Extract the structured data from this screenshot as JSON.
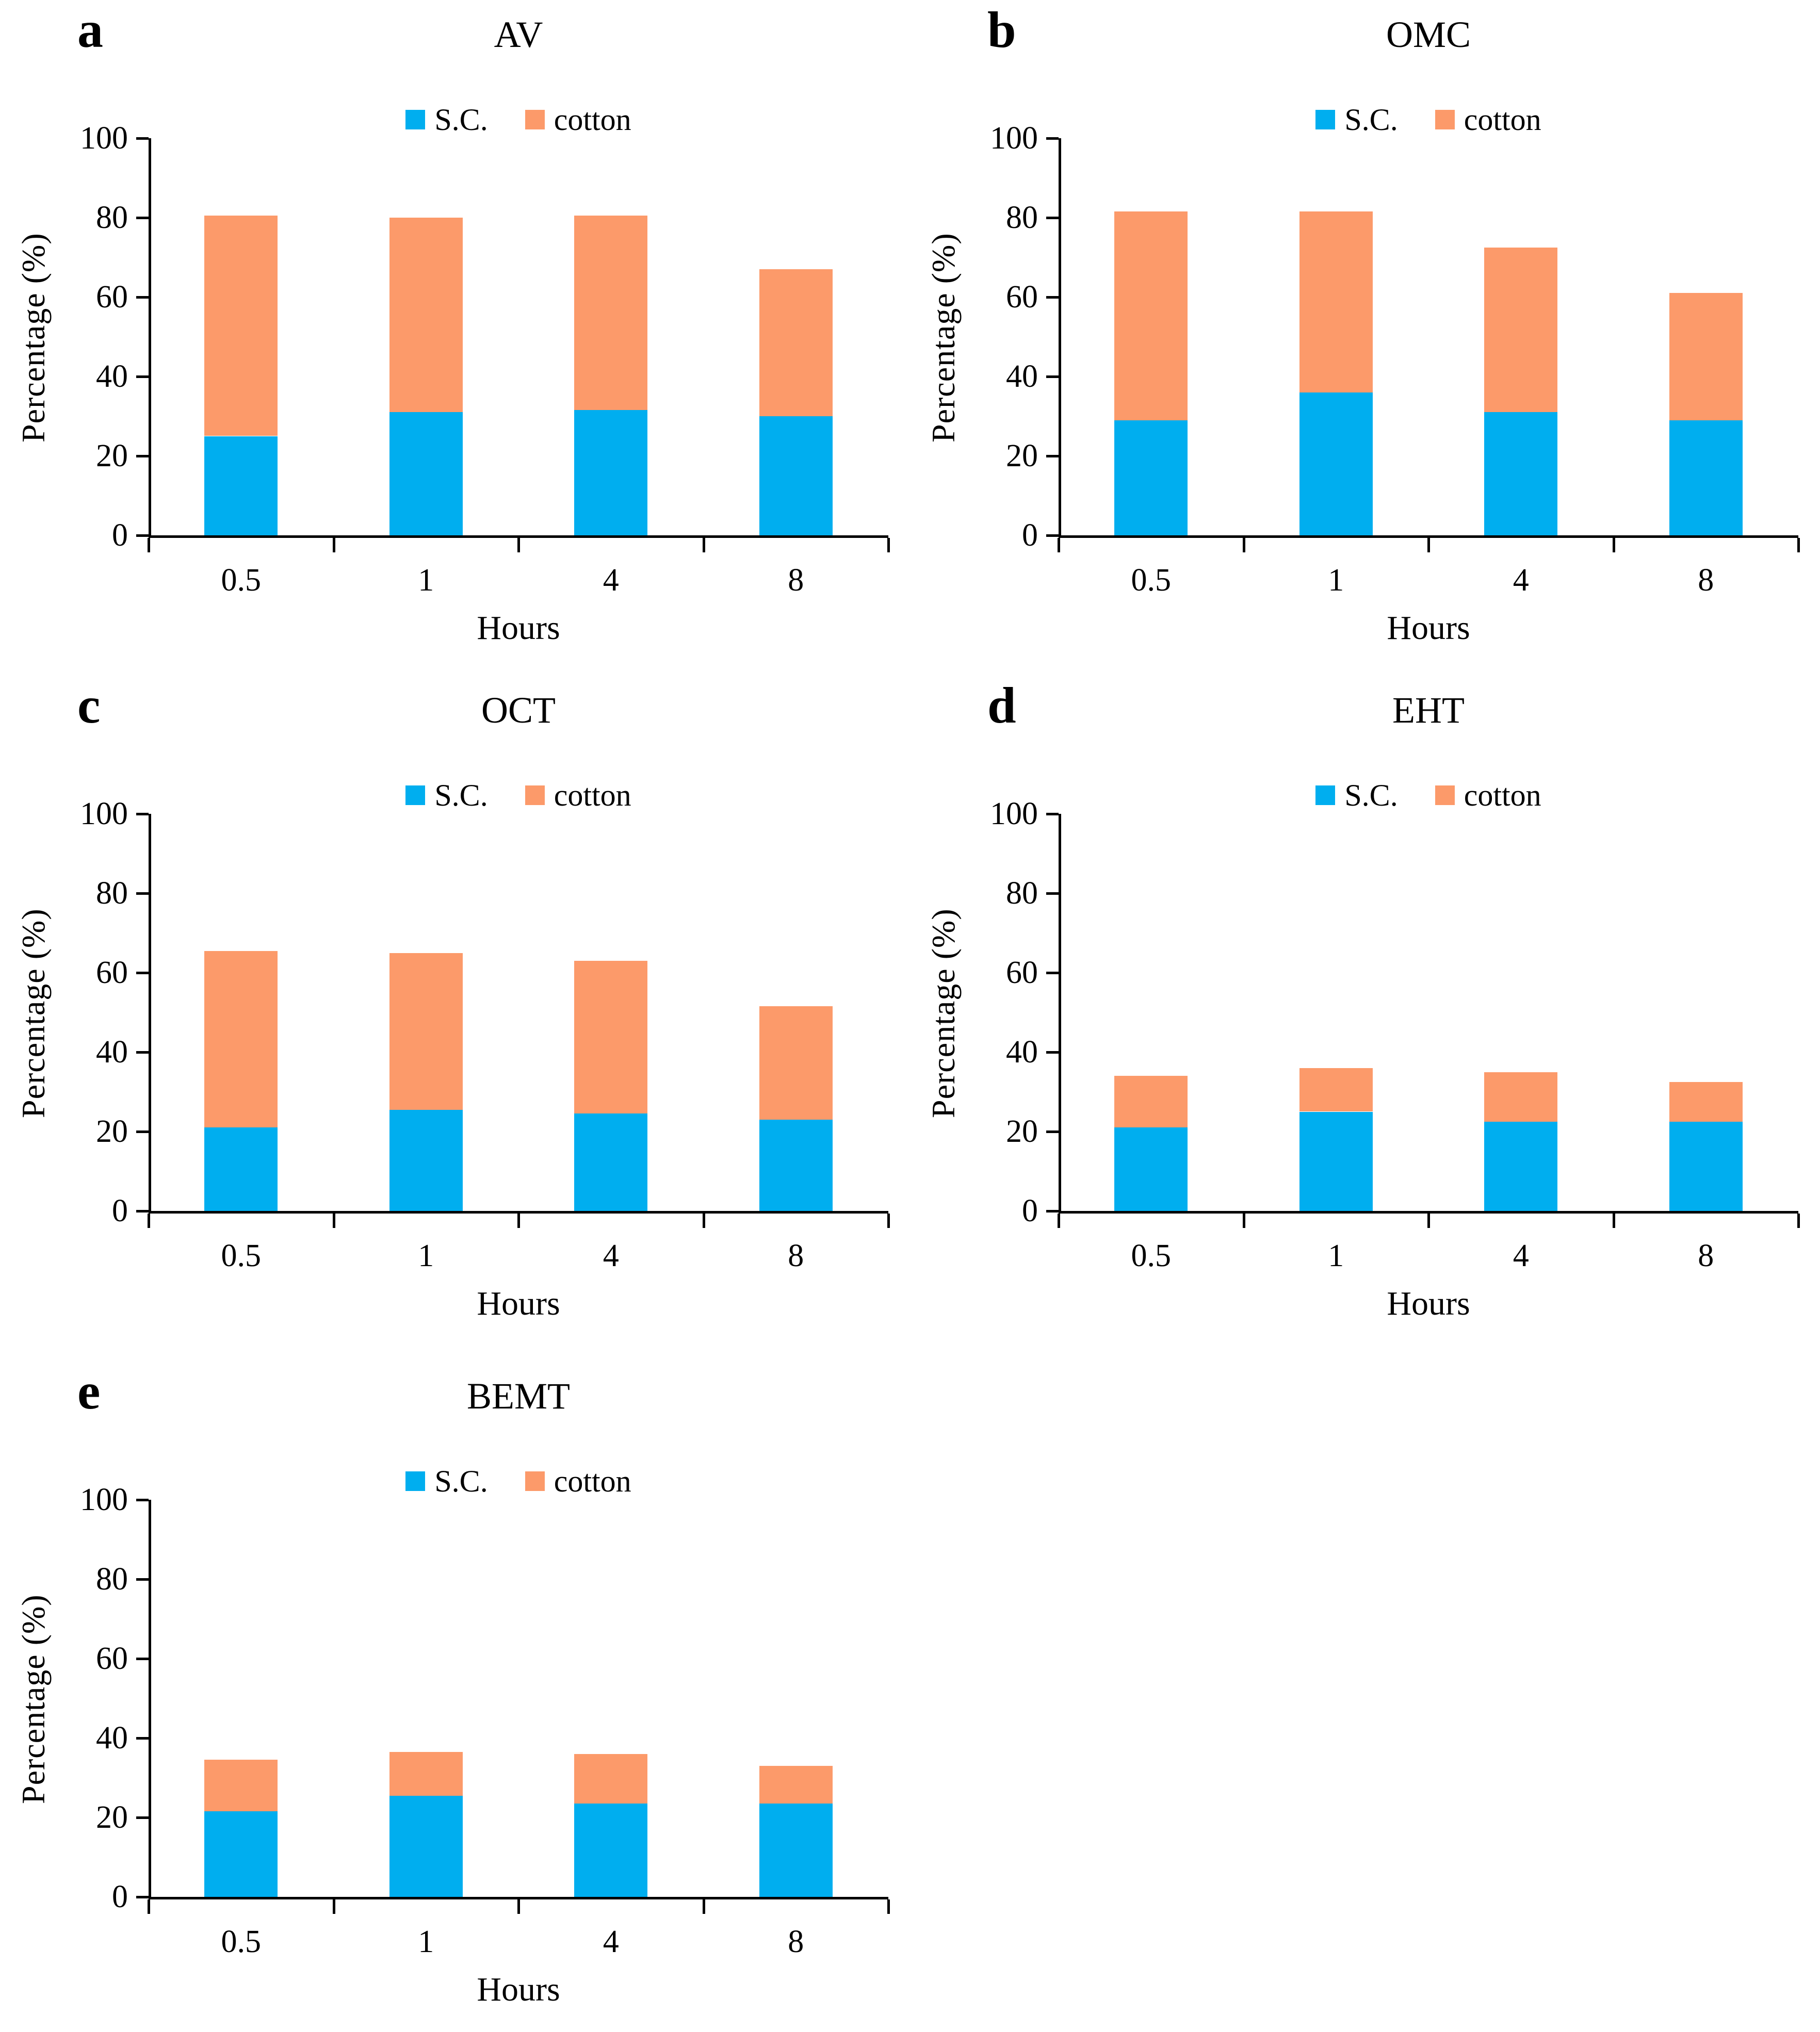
{
  "figure": {
    "background_color": "#ffffff",
    "axis_color": "#000000",
    "series_colors": {
      "sc": "#00AEEF",
      "cotton": "#FC9A6A"
    },
    "legend_labels": {
      "sc": "S.C.",
      "cotton": "cotton"
    }
  },
  "chart_data": [
    {
      "type": "bar",
      "stacked": true,
      "panel_letter": "a",
      "title": "AV",
      "categories": [
        "0.5",
        "1",
        "4",
        "8"
      ],
      "series": [
        {
          "name": "S.C.",
          "color": "#00AEEF",
          "values": [
            25,
            31,
            31.5,
            30
          ]
        },
        {
          "name": "cotton",
          "color": "#FC9A6A",
          "values": [
            55.5,
            49,
            49,
            37
          ]
        }
      ],
      "stack_totals": [
        80.5,
        80,
        80.5,
        67
      ],
      "xlabel": "Hours",
      "ylabel": "Percentage (%)",
      "ylim": [
        0,
        100
      ],
      "yticks": [
        0,
        20,
        40,
        60,
        80,
        100
      ],
      "legend_position": "top-center",
      "grid": false
    },
    {
      "type": "bar",
      "stacked": true,
      "panel_letter": "b",
      "title": "OMC",
      "categories": [
        "0.5",
        "1",
        "4",
        "8"
      ],
      "series": [
        {
          "name": "S.C.",
          "color": "#00AEEF",
          "values": [
            29,
            36,
            31,
            29
          ]
        },
        {
          "name": "cotton",
          "color": "#FC9A6A",
          "values": [
            52.5,
            45.5,
            41.5,
            32
          ]
        }
      ],
      "stack_totals": [
        81.5,
        81.5,
        72.5,
        61
      ],
      "xlabel": "Hours",
      "ylabel": "Percentage (%)",
      "ylim": [
        0,
        100
      ],
      "yticks": [
        0,
        20,
        40,
        60,
        80,
        100
      ],
      "legend_position": "top-center",
      "grid": false
    },
    {
      "type": "bar",
      "stacked": true,
      "panel_letter": "c",
      "title": "OCT",
      "categories": [
        "0.5",
        "1",
        "4",
        "8"
      ],
      "series": [
        {
          "name": "S.C.",
          "color": "#00AEEF",
          "values": [
            21,
            25.5,
            24.5,
            23
          ]
        },
        {
          "name": "cotton",
          "color": "#FC9A6A",
          "values": [
            44.5,
            39.5,
            38.5,
            28.5
          ]
        }
      ],
      "stack_totals": [
        65.5,
        65,
        63,
        51.5
      ],
      "xlabel": "Hours",
      "ylabel": "Percentage (%)",
      "ylim": [
        0,
        100
      ],
      "yticks": [
        0,
        20,
        40,
        60,
        80,
        100
      ],
      "legend_position": "top-center",
      "grid": false
    },
    {
      "type": "bar",
      "stacked": true,
      "panel_letter": "d",
      "title": "EHT",
      "categories": [
        "0.5",
        "1",
        "4",
        "8"
      ],
      "series": [
        {
          "name": "S.C.",
          "color": "#00AEEF",
          "values": [
            21,
            25,
            22.5,
            22.5
          ]
        },
        {
          "name": "cotton",
          "color": "#FC9A6A",
          "values": [
            13,
            11,
            12.5,
            10
          ]
        }
      ],
      "stack_totals": [
        34,
        36,
        35,
        32.5
      ],
      "xlabel": "Hours",
      "ylabel": "Percentage (%)",
      "ylim": [
        0,
        100
      ],
      "yticks": [
        0,
        20,
        40,
        60,
        80,
        100
      ],
      "legend_position": "top-center",
      "grid": false
    },
    {
      "type": "bar",
      "stacked": true,
      "panel_letter": "e",
      "title": "BEMT",
      "categories": [
        "0.5",
        "1",
        "4",
        "8"
      ],
      "series": [
        {
          "name": "S.C.",
          "color": "#00AEEF",
          "values": [
            21.5,
            25.5,
            23.5,
            23.5
          ]
        },
        {
          "name": "cotton",
          "color": "#FC9A6A",
          "values": [
            13,
            11,
            12.5,
            9.5
          ]
        }
      ],
      "stack_totals": [
        34.5,
        36.5,
        36,
        33
      ],
      "xlabel": "Hours",
      "ylabel": "Percentage (%)",
      "ylim": [
        0,
        100
      ],
      "yticks": [
        0,
        20,
        40,
        60,
        80,
        100
      ],
      "legend_position": "top-center",
      "grid": false
    }
  ]
}
